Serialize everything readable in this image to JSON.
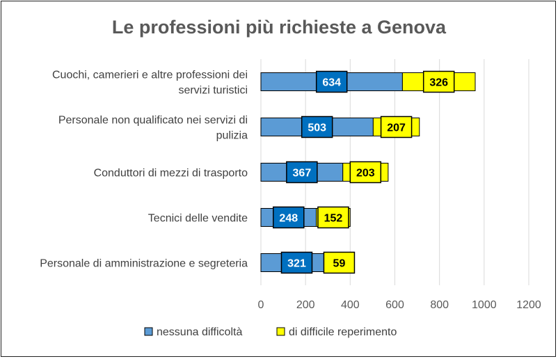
{
  "chart_data": {
    "type": "bar",
    "orientation": "horizontal",
    "stacked": true,
    "title": "Le professioni più richieste a Genova",
    "categories": [
      [
        "Cuochi, camerieri e altre professioni dei",
        "servizi turistici"
      ],
      [
        "Personale non qualificato nei servizi di",
        "pulizia"
      ],
      [
        "Conduttori di mezzi di trasporto"
      ],
      [
        "Tecnici delle vendite"
      ],
      [
        "Personale di amministrazione e segreteria"
      ]
    ],
    "series": [
      {
        "name": "nessuna difficoltà",
        "color": "#5b9bd5",
        "label_color": "#0070c0",
        "label_text": "#ffffff",
        "values": [
          634,
          503,
          367,
          248,
          321
        ]
      },
      {
        "name": "di difficile reperimento",
        "color": "#ffff00",
        "label_color": "#ffff00",
        "label_text": "#000000",
        "values": [
          326,
          207,
          203,
          152,
          59
        ]
      }
    ],
    "xlim": [
      0,
      1200
    ],
    "xticks": [
      "0",
      "200",
      "400",
      "600",
      "800",
      "1000",
      "1200"
    ],
    "grid": true,
    "legend": "bottom"
  }
}
